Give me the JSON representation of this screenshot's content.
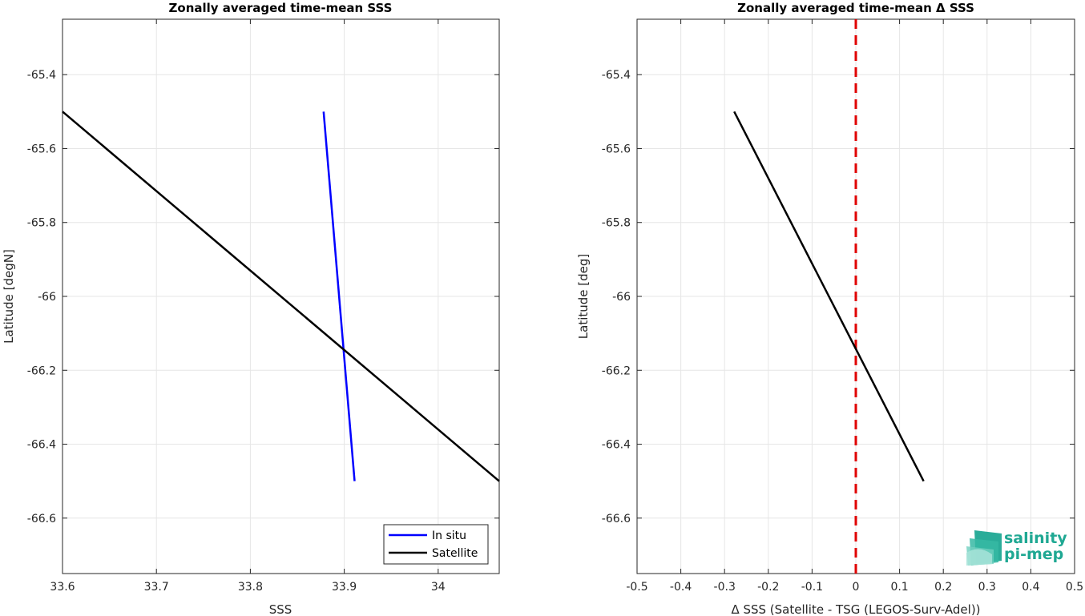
{
  "chart_data": [
    {
      "type": "line",
      "title": "Zonally averaged time-mean SSS",
      "xlabel": "SSS",
      "ylabel": "Latitude [degN]",
      "xlim": [
        33.6,
        34.065
      ],
      "ylim": [
        -66.75,
        -65.25
      ],
      "xticks": [
        33.6,
        33.7,
        33.8,
        33.9,
        34.0
      ],
      "xtick_labels": [
        "33.6",
        "33.7",
        "33.8",
        "33.9",
        "34"
      ],
      "yticks": [
        -65.4,
        -65.6,
        -65.8,
        -66.0,
        -66.2,
        -66.4,
        -66.6
      ],
      "ytick_labels": [
        "-65.4",
        "-65.6",
        "-65.8",
        "-66",
        "-66.2",
        "-66.4",
        "-66.6"
      ],
      "grid": true,
      "legend_position": "bottom-right",
      "series": [
        {
          "name": "In situ",
          "color": "#0000ff",
          "x": [
            33.878,
            33.911
          ],
          "y": [
            -65.5,
            -66.5
          ]
        },
        {
          "name": "Satellite",
          "color": "#000000",
          "x": [
            33.6,
            34.065
          ],
          "y": [
            -65.5,
            -66.5
          ]
        }
      ]
    },
    {
      "type": "line",
      "title": "Zonally averaged time-mean Δ SSS",
      "xlabel": "Δ SSS (Satellite - TSG (LEGOS-Surv-Adel))",
      "ylabel": "Latitude [deg]",
      "xlim": [
        -0.5,
        0.5
      ],
      "ylim": [
        -66.75,
        -65.25
      ],
      "xticks": [
        -0.5,
        -0.4,
        -0.3,
        -0.2,
        -0.1,
        0,
        0.1,
        0.2,
        0.3,
        0.4,
        0.5
      ],
      "xtick_labels": [
        "-0.5",
        "-0.4",
        "-0.3",
        "-0.2",
        "-0.1",
        "0",
        "0.1",
        "0.2",
        "0.3",
        "0.4",
        "0.5"
      ],
      "yticks": [
        -65.4,
        -65.6,
        -65.8,
        -66.0,
        -66.2,
        -66.4,
        -66.6
      ],
      "ytick_labels": [
        "-65.4",
        "-65.6",
        "-65.8",
        "-66",
        "-66.2",
        "-66.4",
        "-66.6"
      ],
      "grid": true,
      "reference_line": {
        "x": 0,
        "color": "#e00000",
        "style": "dashed"
      },
      "series": [
        {
          "color": "#000000",
          "x": [
            -0.278,
            0.155
          ],
          "y": [
            -65.5,
            -66.5
          ]
        }
      ]
    }
  ],
  "logo": {
    "line1": "salinity",
    "line2": "pi-mep",
    "color": "#1fa893",
    "icon": "wave-logo-icon"
  }
}
